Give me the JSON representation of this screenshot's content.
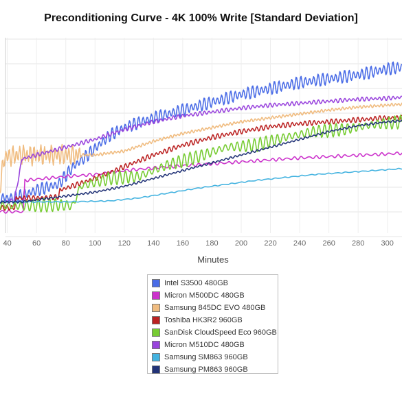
{
  "chart_data": {
    "type": "line",
    "title": "Preconditioning Curve - 4K 100% Write [Standard Deviation]",
    "xlabel": "Minutes",
    "ylabel": "",
    "x_ticks": [
      40,
      60,
      80,
      100,
      120,
      140,
      160,
      180,
      200,
      220,
      240,
      260,
      280,
      300
    ],
    "xlim": [
      35,
      310
    ],
    "ylim": [
      0,
      1
    ],
    "grid": true,
    "legend_position": "bottom-center",
    "series": [
      {
        "name": "Intel S3500 480GB",
        "color": "#4a6ce6",
        "anchors": [
          [
            35,
            0.18
          ],
          [
            45,
            0.18
          ],
          [
            60,
            0.22
          ],
          [
            75,
            0.25
          ],
          [
            85,
            0.34
          ],
          [
            95,
            0.4
          ],
          [
            110,
            0.5
          ],
          [
            120,
            0.54
          ],
          [
            140,
            0.59
          ],
          [
            160,
            0.63
          ],
          [
            180,
            0.67
          ],
          [
            200,
            0.71
          ],
          [
            220,
            0.74
          ],
          [
            240,
            0.77
          ],
          [
            260,
            0.79
          ],
          [
            280,
            0.81
          ],
          [
            300,
            0.84
          ],
          [
            310,
            0.85
          ]
        ],
        "wave": 0.025,
        "period": 3
      },
      {
        "name": "Micron M500DC 480GB",
        "color": "#cc33cc",
        "anchors": [
          [
            35,
            0.11
          ],
          [
            51,
            0.11
          ],
          [
            52,
            0.27
          ],
          [
            80,
            0.29
          ],
          [
            100,
            0.3
          ],
          [
            120,
            0.32
          ],
          [
            150,
            0.34
          ],
          [
            180,
            0.355
          ],
          [
            210,
            0.37
          ],
          [
            240,
            0.385
          ],
          [
            270,
            0.395
          ],
          [
            300,
            0.405
          ],
          [
            310,
            0.41
          ]
        ],
        "wave": 0.006,
        "period": 5
      },
      {
        "name": "Samsung 845DC EVO 480GB",
        "color": "#f0bc80",
        "anchors": [
          [
            35,
            0.24
          ],
          [
            38,
            0.39
          ],
          [
            48,
            0.4
          ],
          [
            70,
            0.4
          ],
          [
            85,
            0.4
          ],
          [
            100,
            0.4
          ],
          [
            120,
            0.42
          ],
          [
            140,
            0.47
          ],
          [
            160,
            0.51
          ],
          [
            180,
            0.54
          ],
          [
            200,
            0.57
          ],
          [
            220,
            0.59
          ],
          [
            240,
            0.61
          ],
          [
            260,
            0.63
          ],
          [
            280,
            0.645
          ],
          [
            300,
            0.655
          ],
          [
            310,
            0.66
          ]
        ],
        "wave": 0.04,
        "period": 2.4,
        "waveEnd": 90
      },
      {
        "name": "Toshiba HK3R2 960GB",
        "color": "#bb2222",
        "anchors": [
          [
            35,
            0.13
          ],
          [
            45,
            0.13
          ],
          [
            46,
            0.18
          ],
          [
            60,
            0.18
          ],
          [
            75,
            0.185
          ],
          [
            76,
            0.22
          ],
          [
            100,
            0.28
          ],
          [
            120,
            0.34
          ],
          [
            140,
            0.4
          ],
          [
            160,
            0.45
          ],
          [
            180,
            0.49
          ],
          [
            200,
            0.52
          ],
          [
            220,
            0.545
          ],
          [
            240,
            0.56
          ],
          [
            260,
            0.57
          ],
          [
            280,
            0.58
          ],
          [
            300,
            0.59
          ],
          [
            310,
            0.59
          ]
        ],
        "wave": 0.01,
        "period": 3
      },
      {
        "name": "SanDisk CloudSpeed Eco 960GB",
        "color": "#77cc33",
        "anchors": [
          [
            35,
            0.14
          ],
          [
            50,
            0.14
          ],
          [
            75,
            0.145
          ],
          [
            85,
            0.14
          ],
          [
            90,
            0.24
          ],
          [
            110,
            0.28
          ],
          [
            130,
            0.29
          ],
          [
            150,
            0.35
          ],
          [
            170,
            0.39
          ],
          [
            190,
            0.44
          ],
          [
            210,
            0.45
          ],
          [
            230,
            0.49
          ],
          [
            250,
            0.52
          ],
          [
            270,
            0.53
          ],
          [
            290,
            0.555
          ],
          [
            310,
            0.57
          ]
        ],
        "wave": 0.025,
        "period": 4
      },
      {
        "name": "Micron M510DC 480GB",
        "color": "#9944dd",
        "anchors": [
          [
            35,
            0.16
          ],
          [
            40,
            0.16
          ],
          [
            45,
            0.17
          ],
          [
            50,
            0.38
          ],
          [
            60,
            0.4
          ],
          [
            80,
            0.44
          ],
          [
            100,
            0.48
          ],
          [
            120,
            0.53
          ],
          [
            140,
            0.57
          ],
          [
            160,
            0.6
          ],
          [
            180,
            0.62
          ],
          [
            200,
            0.64
          ],
          [
            220,
            0.655
          ],
          [
            240,
            0.665
          ],
          [
            260,
            0.675
          ],
          [
            280,
            0.685
          ],
          [
            300,
            0.69
          ],
          [
            310,
            0.695
          ]
        ],
        "wave": 0.008,
        "period": 3
      },
      {
        "name": "Samsung SM863 960GB",
        "color": "#44b3e0",
        "anchors": [
          [
            35,
            0.16
          ],
          [
            80,
            0.16
          ],
          [
            110,
            0.165
          ],
          [
            130,
            0.18
          ],
          [
            150,
            0.205
          ],
          [
            170,
            0.23
          ],
          [
            190,
            0.25
          ],
          [
            210,
            0.27
          ],
          [
            230,
            0.285
          ],
          [
            250,
            0.3
          ],
          [
            270,
            0.31
          ],
          [
            290,
            0.32
          ],
          [
            310,
            0.33
          ]
        ],
        "wave": 0.002,
        "period": 6
      },
      {
        "name": "Samsung PM863 960GB",
        "color": "#223377",
        "anchors": [
          [
            35,
            0.16
          ],
          [
            50,
            0.16
          ],
          [
            60,
            0.17
          ],
          [
            70,
            0.18
          ],
          [
            100,
            0.21
          ],
          [
            120,
            0.24
          ],
          [
            140,
            0.28
          ],
          [
            160,
            0.32
          ],
          [
            180,
            0.36
          ],
          [
            200,
            0.4
          ],
          [
            220,
            0.44
          ],
          [
            240,
            0.48
          ],
          [
            260,
            0.52
          ],
          [
            280,
            0.55
          ],
          [
            300,
            0.57
          ],
          [
            310,
            0.575
          ]
        ],
        "wave": 0.004,
        "period": 3
      }
    ]
  }
}
